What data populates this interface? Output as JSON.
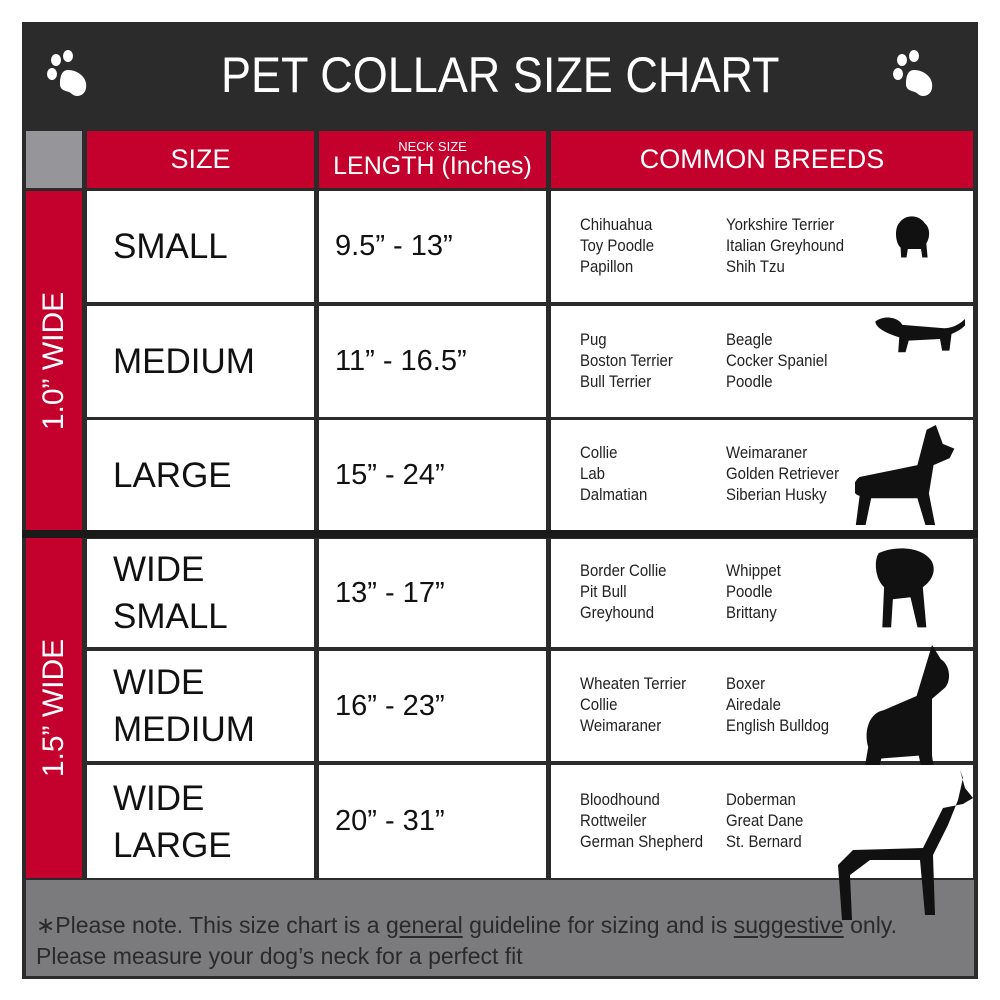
{
  "title": "PET COLLAR SIZE CHART",
  "header": {
    "size": "SIZE",
    "neck_small": "NECK SIZE",
    "length": "LENGTH (Inches)",
    "breeds": "COMMON BREEDS"
  },
  "groups": [
    {
      "label": "1.0” WIDE"
    },
    {
      "label": "1.5” WIDE"
    }
  ],
  "rows": [
    {
      "size": "SMALL",
      "length": "9.5” - 13”",
      "breeds_a": [
        "Chihuahua",
        "Toy Poodle",
        "Papillon"
      ],
      "breeds_b": [
        "Yorkshire Terrier",
        "Italian Greyhound",
        "Shih Tzu"
      ]
    },
    {
      "size": "MEDIUM",
      "length": "11” - 16.5”",
      "breeds_a": [
        "Pug",
        "Boston Terrier",
        "Bull Terrier"
      ],
      "breeds_b": [
        "Beagle",
        "Cocker Spaniel",
        "Poodle"
      ]
    },
    {
      "size": "LARGE",
      "length": "15” - 24”",
      "breeds_a": [
        "Collie",
        "Lab",
        "Dalmatian"
      ],
      "breeds_b": [
        "Weimaraner",
        "Golden Retriever",
        "Siberian Husky"
      ]
    },
    {
      "size": "WIDE SMALL",
      "length": "13” - 17”",
      "breeds_a": [
        "Border Collie",
        "Pit Bull",
        "Greyhound"
      ],
      "breeds_b": [
        "Whippet",
        "Poodle",
        "Brittany"
      ]
    },
    {
      "size": "WIDE MEDIUM",
      "length": "16” - 23”",
      "breeds_a": [
        "Wheaten Terrier",
        "Collie",
        "Weimaraner"
      ],
      "breeds_b": [
        "Boxer",
        "Airedale",
        "English Bulldog"
      ]
    },
    {
      "size": "WIDE LARGE",
      "length": "20” - 31”",
      "breeds_a": [
        "Bloodhound",
        "Rottweiler",
        "German Shepherd"
      ],
      "breeds_b": [
        "Doberman",
        "Great Dane",
        "St. Bernard"
      ]
    }
  ],
  "footer": {
    "part1": "∗Please note. This size chart is a ",
    "general": "general",
    "part2": " guideline for sizing and is ",
    "suggestive": "suggestive",
    "part3": " only.",
    "line2": "Please measure your dog’s neck for a perfect fit"
  },
  "colors": {
    "red": "#c4002d",
    "dark": "#2b2b2b",
    "gray": "#7b7b7e"
  }
}
